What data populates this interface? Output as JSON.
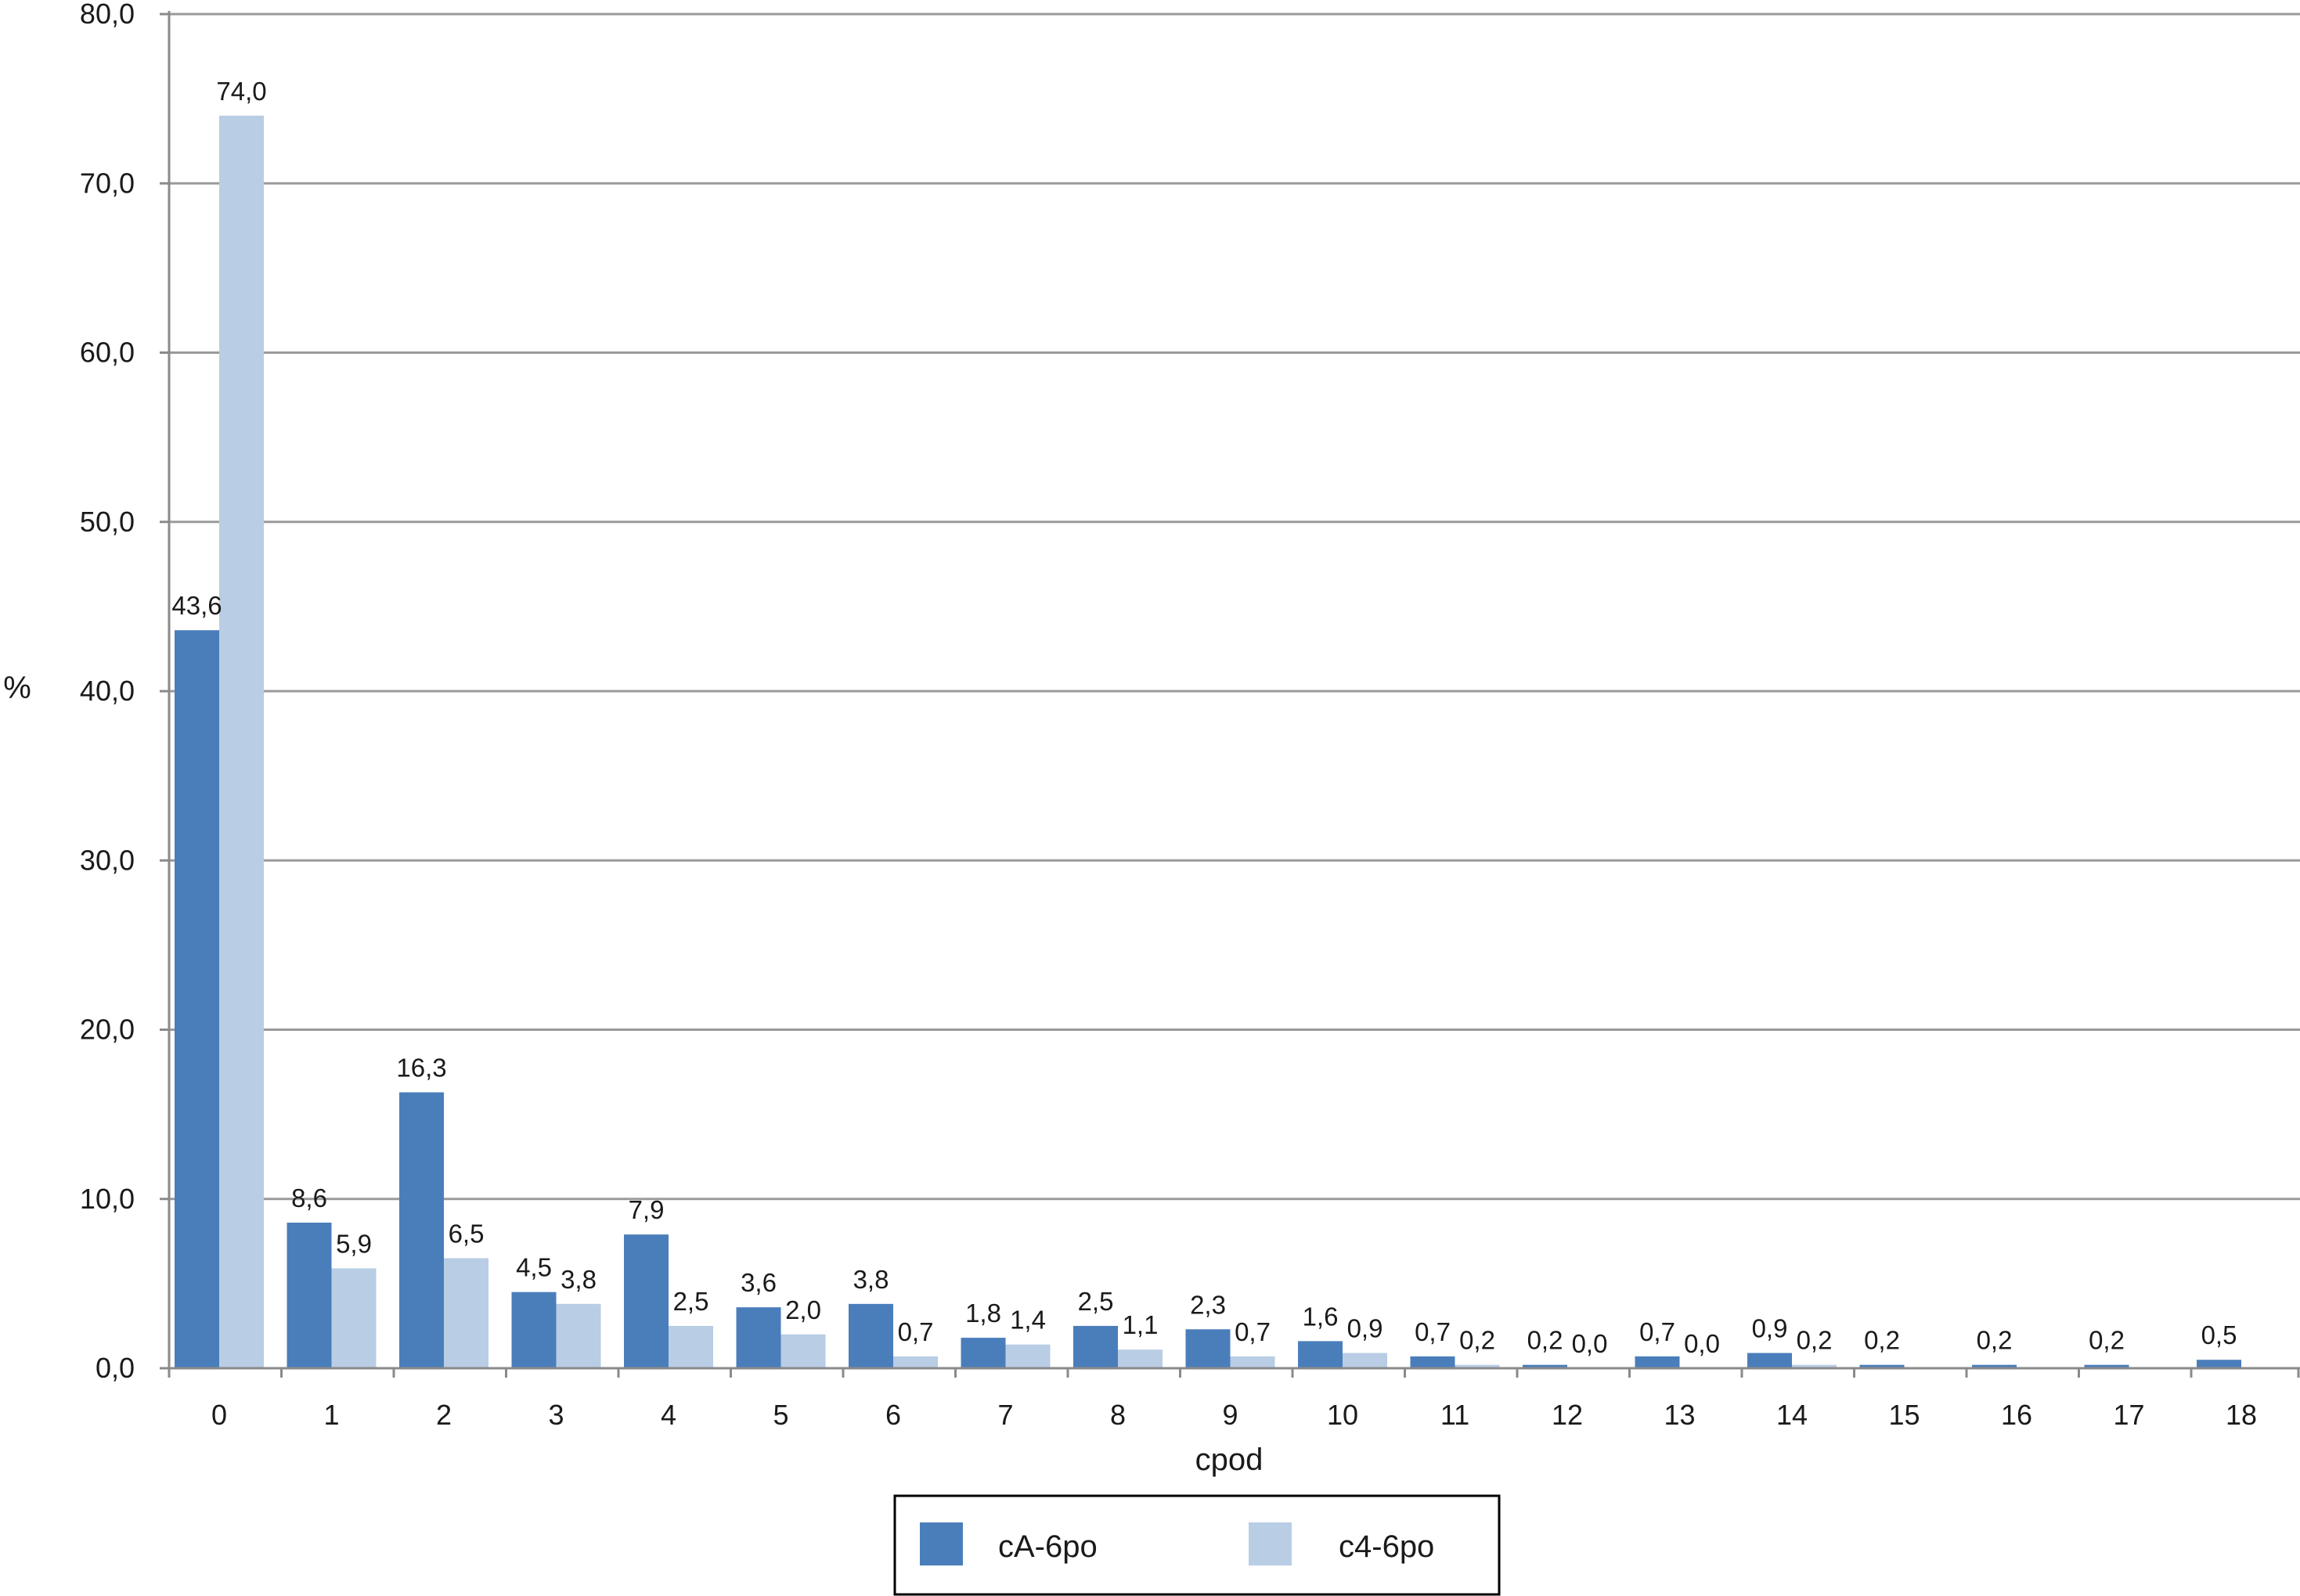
{
  "chart_data": {
    "type": "bar",
    "xlabel": "cpod",
    "ylabel": "%",
    "ylim": [
      0,
      80
    ],
    "y_ticks": [
      "0,0",
      "10,0",
      "20,0",
      "30,0",
      "40,0",
      "50,0",
      "60,0",
      "70,0",
      "80,0"
    ],
    "grid": true,
    "legend_position": "bottom-center",
    "categories": [
      "0",
      "1",
      "2",
      "3",
      "4",
      "5",
      "6",
      "7",
      "8",
      "9",
      "10",
      "11",
      "12",
      "13",
      "14",
      "15",
      "16",
      "17",
      "18"
    ],
    "series": [
      {
        "name": "cA-6po",
        "color": "#4a7ebb",
        "values": [
          43.6,
          8.6,
          16.3,
          4.5,
          7.9,
          3.6,
          3.8,
          1.8,
          2.5,
          2.3,
          1.6,
          0.7,
          0.2,
          0.7,
          0.9,
          0.2,
          0.2,
          0.2,
          0.5
        ],
        "labels": [
          "43,6",
          "8,6",
          "16,3",
          "4,5",
          "7,9",
          "3,6",
          "3,8",
          "1,8",
          "2,5",
          "2,3",
          "1,6",
          "0,7",
          "0,2",
          "0,7",
          "0,9",
          "0,2",
          "0,2",
          "0,2",
          "0,5"
        ]
      },
      {
        "name": "c4-6po",
        "color": "#b9cde5",
        "values": [
          74.0,
          5.9,
          6.5,
          3.8,
          2.5,
          2.0,
          0.7,
          1.4,
          1.1,
          0.7,
          0.9,
          0.2,
          0.0,
          0.0,
          0.2,
          null,
          null,
          null,
          null
        ],
        "labels": [
          "74,0",
          "5,9",
          "6,5",
          "3,8",
          "2,5",
          "2,0",
          "0,7",
          "1,4",
          "1,1",
          "0,7",
          "0,9",
          "0,2",
          "0,0",
          "0,0",
          "0,2",
          null,
          null,
          null,
          null
        ]
      }
    ]
  }
}
